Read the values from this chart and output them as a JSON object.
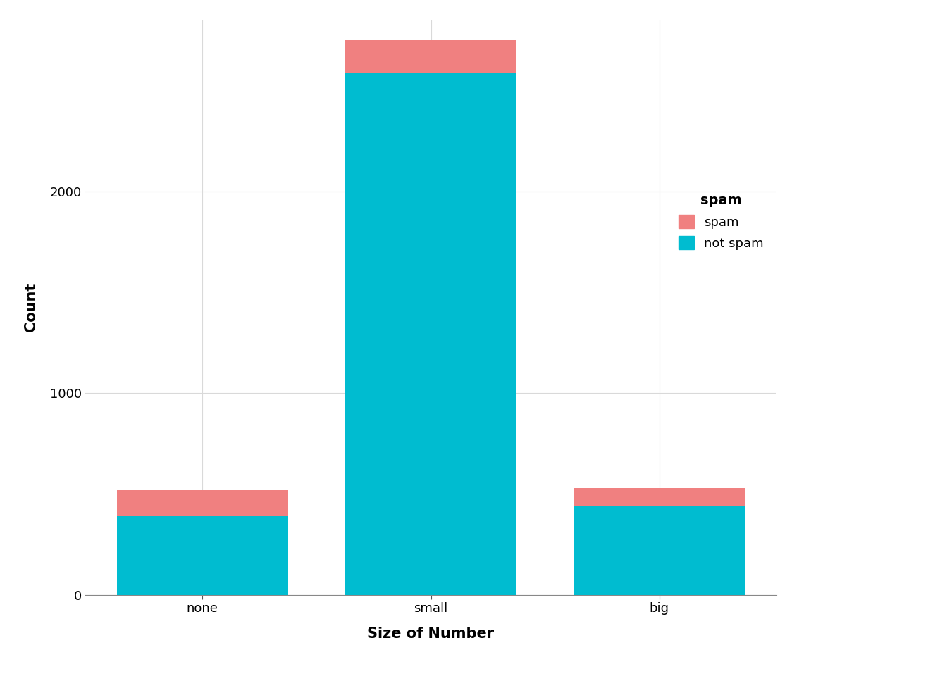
{
  "categories": [
    "none",
    "small",
    "big"
  ],
  "not_spam": [
    390,
    2590,
    440
  ],
  "spam": [
    130,
    160,
    90
  ],
  "color_not_spam": "#00BCD0",
  "color_spam": "#F08080",
  "xlabel": "Size of Number",
  "ylabel": "Count",
  "legend_title": "spam",
  "background_color": "#ffffff",
  "panel_background": "#ffffff",
  "grid_color": "#d9d9d9",
  "ylim": [
    0,
    2850
  ],
  "yticks": [
    0,
    1000,
    2000
  ],
  "bar_width": 0.75,
  "axis_label_fontsize": 15,
  "tick_fontsize": 13,
  "legend_fontsize": 13,
  "legend_title_fontsize": 14
}
